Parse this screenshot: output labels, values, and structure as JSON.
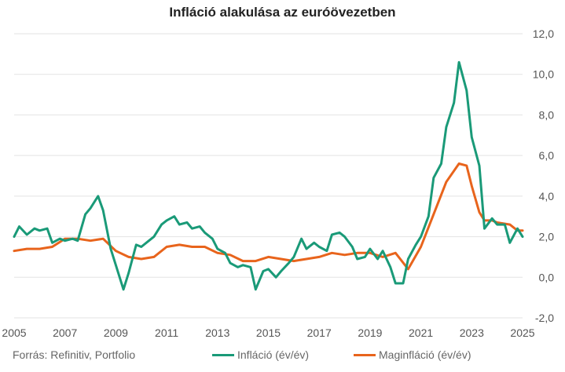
{
  "title": "Infláció alakulása az euróövezetben",
  "source": "Forrás: Refinitiv, Portfolio",
  "chart_data": {
    "type": "line",
    "title": "Infláció alakulása az euróövezetben",
    "xlabel": "",
    "ylabel": "",
    "xlim": [
      2005,
      2025
    ],
    "ylim": [
      -2.0,
      12.0
    ],
    "y_ticks": [
      "12,0",
      "10,0",
      "8,0",
      "6,0",
      "4,0",
      "2,0",
      "0,0",
      "-2,0"
    ],
    "x_ticks": [
      "2005",
      "2007",
      "2009",
      "2011",
      "2013",
      "2015",
      "2017",
      "2019",
      "2021",
      "2023",
      "2025"
    ],
    "grid": "horizontal",
    "legend_position": "bottom",
    "series": [
      {
        "name": "Infláció (év/év)",
        "color": "#1a9a78",
        "x": [
          2005.0,
          2005.2,
          2005.5,
          2005.8,
          2006.0,
          2006.3,
          2006.5,
          2006.8,
          2007.0,
          2007.3,
          2007.5,
          2007.8,
          2008.0,
          2008.3,
          2008.5,
          2008.8,
          2009.0,
          2009.3,
          2009.5,
          2009.8,
          2010.0,
          2010.3,
          2010.5,
          2010.8,
          2011.0,
          2011.3,
          2011.5,
          2011.8,
          2012.0,
          2012.3,
          2012.5,
          2012.8,
          2013.0,
          2013.3,
          2013.5,
          2013.8,
          2014.0,
          2014.3,
          2014.5,
          2014.8,
          2015.0,
          2015.3,
          2015.5,
          2015.8,
          2016.0,
          2016.3,
          2016.5,
          2016.8,
          2017.0,
          2017.3,
          2017.5,
          2017.8,
          2018.0,
          2018.3,
          2018.5,
          2018.8,
          2019.0,
          2019.3,
          2019.5,
          2019.8,
          2020.0,
          2020.3,
          2020.5,
          2020.8,
          2021.0,
          2021.3,
          2021.5,
          2021.8,
          2022.0,
          2022.3,
          2022.5,
          2022.8,
          2023.0,
          2023.3,
          2023.5,
          2023.8,
          2024.0,
          2024.3,
          2024.5,
          2024.8,
          2025.0
        ],
        "values": [
          2.0,
          2.5,
          2.1,
          2.4,
          2.3,
          2.4,
          1.7,
          1.9,
          1.8,
          1.9,
          1.8,
          3.1,
          3.4,
          4.0,
          3.3,
          1.4,
          0.6,
          -0.6,
          0.2,
          1.6,
          1.5,
          1.8,
          2.0,
          2.6,
          2.8,
          3.0,
          2.6,
          2.7,
          2.4,
          2.5,
          2.2,
          1.9,
          1.4,
          1.2,
          0.7,
          0.5,
          0.6,
          0.5,
          -0.6,
          0.3,
          0.4,
          0.0,
          0.3,
          0.7,
          1.0,
          1.9,
          1.4,
          1.7,
          1.5,
          1.3,
          2.1,
          2.2,
          2.0,
          1.5,
          0.9,
          1.0,
          1.4,
          0.9,
          1.3,
          0.5,
          -0.3,
          -0.3,
          0.9,
          1.6,
          2.0,
          3.0,
          4.9,
          5.6,
          7.4,
          8.6,
          10.6,
          9.2,
          6.9,
          5.5,
          2.4,
          2.9,
          2.6,
          2.6,
          1.7,
          2.4,
          2.0
        ]
      },
      {
        "name": "Maginfláció (év/év)",
        "color": "#e8641c",
        "x": [
          2005.0,
          2005.5,
          2006.0,
          2006.5,
          2007.0,
          2007.5,
          2008.0,
          2008.5,
          2009.0,
          2009.5,
          2010.0,
          2010.5,
          2011.0,
          2011.5,
          2012.0,
          2012.5,
          2013.0,
          2013.5,
          2014.0,
          2014.5,
          2015.0,
          2015.5,
          2016.0,
          2016.5,
          2017.0,
          2017.5,
          2018.0,
          2018.5,
          2019.0,
          2019.5,
          2020.0,
          2020.5,
          2021.0,
          2021.5,
          2022.0,
          2022.5,
          2022.8,
          2023.0,
          2023.3,
          2023.5,
          2023.8,
          2024.0,
          2024.5,
          2024.8,
          2025.0
        ],
        "values": [
          1.3,
          1.4,
          1.4,
          1.5,
          1.9,
          1.9,
          1.8,
          1.9,
          1.3,
          1.0,
          0.9,
          1.0,
          1.5,
          1.6,
          1.5,
          1.5,
          1.2,
          1.1,
          0.8,
          0.8,
          1.0,
          0.9,
          0.8,
          0.9,
          1.0,
          1.2,
          1.1,
          1.2,
          1.2,
          1.0,
          1.2,
          0.4,
          1.5,
          3.1,
          4.7,
          5.6,
          5.5,
          4.5,
          3.2,
          2.8,
          2.8,
          2.7,
          2.6,
          2.3,
          2.3
        ]
      }
    ]
  }
}
